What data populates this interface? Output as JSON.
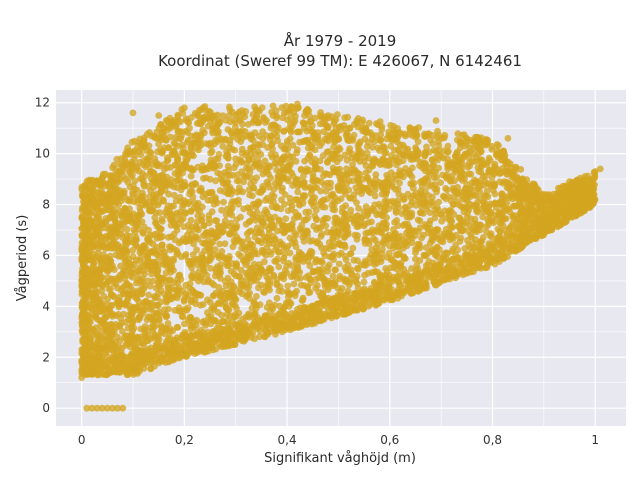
{
  "chart_data": {
    "type": "scatter",
    "title_line1": "År 1979 - 2019",
    "title_line2": "Koordinat (Sweref 99 TM): E 426067, N 6142461",
    "xlabel": "Signifikant våghöjd (m)",
    "ylabel": "Vågperiod (s)",
    "xlim": [
      -0.05,
      1.06
    ],
    "ylim": [
      -0.7,
      12.5
    ],
    "x_ticks": [
      {
        "value": 0,
        "label": "0"
      },
      {
        "value": 0.2,
        "label": "0,2"
      },
      {
        "value": 0.4,
        "label": "0,4"
      },
      {
        "value": 0.6,
        "label": "0,6"
      },
      {
        "value": 0.8,
        "label": "0,8"
      },
      {
        "value": 1,
        "label": "1"
      }
    ],
    "y_ticks": [
      {
        "value": 0,
        "label": "0"
      },
      {
        "value": 2,
        "label": "2"
      },
      {
        "value": 4,
        "label": "4"
      },
      {
        "value": 6,
        "label": "6"
      },
      {
        "value": 8,
        "label": "8"
      },
      {
        "value": 10,
        "label": "10"
      },
      {
        "value": 12,
        "label": "12"
      }
    ],
    "grid": true,
    "marker_color": "#D4A520",
    "plot_background": "#E8E8F0",
    "point_cloud": {
      "description_note": "dense cloud",
      "lower_boundary": [
        [
          0.0,
          1.3
        ],
        [
          0.1,
          1.3
        ],
        [
          0.2,
          2.0
        ],
        [
          0.4,
          3.0
        ],
        [
          0.6,
          4.2
        ],
        [
          0.8,
          5.6
        ],
        [
          1.0,
          8.0
        ]
      ],
      "upper_boundary": [
        [
          0.0,
          8.8
        ],
        [
          0.05,
          9.4
        ],
        [
          0.1,
          10.5
        ],
        [
          0.2,
          11.8
        ],
        [
          0.4,
          11.9
        ],
        [
          0.6,
          11.2
        ],
        [
          0.8,
          10.6
        ],
        [
          0.9,
          8.4
        ],
        [
          1.0,
          9.3
        ]
      ],
      "zero_points": [
        [
          0.01,
          0
        ],
        [
          0.02,
          0
        ],
        [
          0.03,
          0
        ],
        [
          0.04,
          0
        ],
        [
          0.05,
          0
        ],
        [
          0.06,
          0
        ],
        [
          0.07,
          0
        ],
        [
          0.08,
          0
        ]
      ],
      "outliers": [
        [
          0.1,
          11.6
        ],
        [
          0.15,
          11.5
        ],
        [
          0.2,
          11.8
        ],
        [
          0.24,
          11.85
        ],
        [
          0.3,
          11.5
        ],
        [
          0.36,
          11.3
        ],
        [
          0.42,
          11.95
        ],
        [
          0.44,
          11.7
        ],
        [
          0.48,
          11.5
        ],
        [
          0.56,
          11.2
        ],
        [
          0.64,
          11.0
        ],
        [
          0.69,
          11.3
        ],
        [
          0.75,
          10.5
        ],
        [
          0.83,
          10.6
        ],
        [
          0.86,
          8.2
        ],
        [
          0.95,
          8.9
        ],
        [
          0.98,
          9.1
        ],
        [
          1.0,
          9.3
        ],
        [
          1.01,
          9.4
        ],
        [
          0.0,
          1.2
        ],
        [
          0.01,
          1.6
        ],
        [
          0.02,
          4.5
        ],
        [
          0.03,
          7.5
        ],
        [
          0.04,
          9.0
        ]
      ]
    }
  }
}
